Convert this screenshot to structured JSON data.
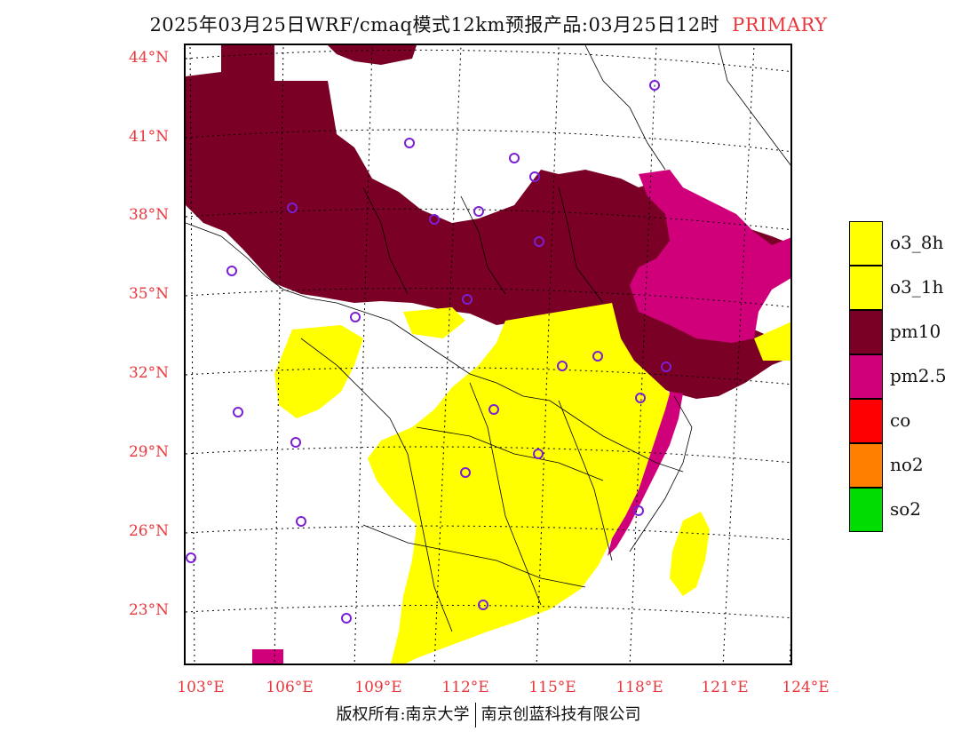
{
  "title": {
    "main": "2025年03月25日WRF/cmaq模式12km预报产品:03月25日12时",
    "tag": "PRIMARY"
  },
  "axes": {
    "lat_labels": [
      "44°N",
      "41°N",
      "38°N",
      "35°N",
      "32°N",
      "29°N",
      "26°N",
      "23°N"
    ],
    "lon_labels": [
      "103°E",
      "106°E",
      "109°E",
      "112°E",
      "115°E",
      "118°E",
      "121°E",
      "124°E"
    ]
  },
  "legend": [
    {
      "label": "o3_8h",
      "color": "#ffff00"
    },
    {
      "label": "o3_1h",
      "color": "#ffff00"
    },
    {
      "label": "pm10",
      "color": "#7a0026"
    },
    {
      "label": "pm2.5",
      "color": "#d0007a"
    },
    {
      "label": "co",
      "color": "#ff0000"
    },
    {
      "label": "no2",
      "color": "#ff8000"
    },
    {
      "label": "so2",
      "color": "#00dd00"
    }
  ],
  "footer": {
    "left": "版权所有:南京大学",
    "right": "南京创蓝科技有限公司"
  }
}
